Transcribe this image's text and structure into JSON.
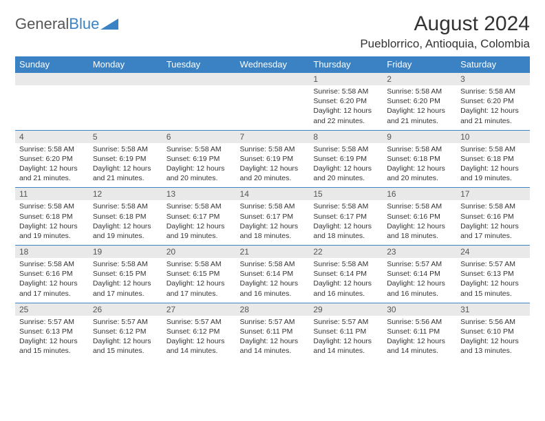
{
  "brand": {
    "name1": "General",
    "name2": "Blue"
  },
  "title": "August 2024",
  "location": "Pueblorrico, Antioquia, Colombia",
  "colors": {
    "header_bg": "#3b82c4",
    "header_fg": "#ffffff",
    "daynum_bg": "#e9e9e9",
    "border": "#3b82c4",
    "text": "#333333"
  },
  "typography": {
    "title_fontsize": 30,
    "location_fontsize": 17,
    "dayhead_fontsize": 13,
    "cell_fontsize": 10.5
  },
  "day_names": [
    "Sunday",
    "Monday",
    "Tuesday",
    "Wednesday",
    "Thursday",
    "Friday",
    "Saturday"
  ],
  "weeks": [
    [
      null,
      null,
      null,
      null,
      {
        "n": "1",
        "sr": "5:58 AM",
        "ss": "6:20 PM",
        "dl": "12 hours and 22 minutes."
      },
      {
        "n": "2",
        "sr": "5:58 AM",
        "ss": "6:20 PM",
        "dl": "12 hours and 21 minutes."
      },
      {
        "n": "3",
        "sr": "5:58 AM",
        "ss": "6:20 PM",
        "dl": "12 hours and 21 minutes."
      }
    ],
    [
      {
        "n": "4",
        "sr": "5:58 AM",
        "ss": "6:20 PM",
        "dl": "12 hours and 21 minutes."
      },
      {
        "n": "5",
        "sr": "5:58 AM",
        "ss": "6:19 PM",
        "dl": "12 hours and 21 minutes."
      },
      {
        "n": "6",
        "sr": "5:58 AM",
        "ss": "6:19 PM",
        "dl": "12 hours and 20 minutes."
      },
      {
        "n": "7",
        "sr": "5:58 AM",
        "ss": "6:19 PM",
        "dl": "12 hours and 20 minutes."
      },
      {
        "n": "8",
        "sr": "5:58 AM",
        "ss": "6:19 PM",
        "dl": "12 hours and 20 minutes."
      },
      {
        "n": "9",
        "sr": "5:58 AM",
        "ss": "6:18 PM",
        "dl": "12 hours and 20 minutes."
      },
      {
        "n": "10",
        "sr": "5:58 AM",
        "ss": "6:18 PM",
        "dl": "12 hours and 19 minutes."
      }
    ],
    [
      {
        "n": "11",
        "sr": "5:58 AM",
        "ss": "6:18 PM",
        "dl": "12 hours and 19 minutes."
      },
      {
        "n": "12",
        "sr": "5:58 AM",
        "ss": "6:18 PM",
        "dl": "12 hours and 19 minutes."
      },
      {
        "n": "13",
        "sr": "5:58 AM",
        "ss": "6:17 PM",
        "dl": "12 hours and 19 minutes."
      },
      {
        "n": "14",
        "sr": "5:58 AM",
        "ss": "6:17 PM",
        "dl": "12 hours and 18 minutes."
      },
      {
        "n": "15",
        "sr": "5:58 AM",
        "ss": "6:17 PM",
        "dl": "12 hours and 18 minutes."
      },
      {
        "n": "16",
        "sr": "5:58 AM",
        "ss": "6:16 PM",
        "dl": "12 hours and 18 minutes."
      },
      {
        "n": "17",
        "sr": "5:58 AM",
        "ss": "6:16 PM",
        "dl": "12 hours and 17 minutes."
      }
    ],
    [
      {
        "n": "18",
        "sr": "5:58 AM",
        "ss": "6:16 PM",
        "dl": "12 hours and 17 minutes."
      },
      {
        "n": "19",
        "sr": "5:58 AM",
        "ss": "6:15 PM",
        "dl": "12 hours and 17 minutes."
      },
      {
        "n": "20",
        "sr": "5:58 AM",
        "ss": "6:15 PM",
        "dl": "12 hours and 17 minutes."
      },
      {
        "n": "21",
        "sr": "5:58 AM",
        "ss": "6:14 PM",
        "dl": "12 hours and 16 minutes."
      },
      {
        "n": "22",
        "sr": "5:58 AM",
        "ss": "6:14 PM",
        "dl": "12 hours and 16 minutes."
      },
      {
        "n": "23",
        "sr": "5:57 AM",
        "ss": "6:14 PM",
        "dl": "12 hours and 16 minutes."
      },
      {
        "n": "24",
        "sr": "5:57 AM",
        "ss": "6:13 PM",
        "dl": "12 hours and 15 minutes."
      }
    ],
    [
      {
        "n": "25",
        "sr": "5:57 AM",
        "ss": "6:13 PM",
        "dl": "12 hours and 15 minutes."
      },
      {
        "n": "26",
        "sr": "5:57 AM",
        "ss": "6:12 PM",
        "dl": "12 hours and 15 minutes."
      },
      {
        "n": "27",
        "sr": "5:57 AM",
        "ss": "6:12 PM",
        "dl": "12 hours and 14 minutes."
      },
      {
        "n": "28",
        "sr": "5:57 AM",
        "ss": "6:11 PM",
        "dl": "12 hours and 14 minutes."
      },
      {
        "n": "29",
        "sr": "5:57 AM",
        "ss": "6:11 PM",
        "dl": "12 hours and 14 minutes."
      },
      {
        "n": "30",
        "sr": "5:56 AM",
        "ss": "6:11 PM",
        "dl": "12 hours and 14 minutes."
      },
      {
        "n": "31",
        "sr": "5:56 AM",
        "ss": "6:10 PM",
        "dl": "12 hours and 13 minutes."
      }
    ]
  ],
  "labels": {
    "sunrise": "Sunrise: ",
    "sunset": "Sunset: ",
    "daylight": "Daylight: "
  }
}
